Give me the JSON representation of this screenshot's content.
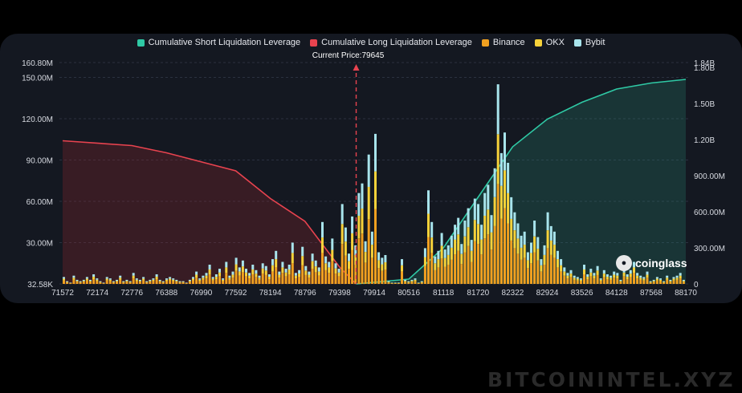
{
  "legend": [
    {
      "label": "Cumulative Short Liquidation Leverage",
      "color": "#2fc9a5"
    },
    {
      "label": "Cumulative Long Liquidation Leverage",
      "color": "#e8434f"
    },
    {
      "label": "Binance",
      "color": "#f0a020"
    },
    {
      "label": "OKX",
      "color": "#f7d23a"
    },
    {
      "label": "Bybit",
      "color": "#a8e4ec"
    }
  ],
  "brand": "coinglass",
  "brand_icon": "coinglass-logo-icon",
  "watermark": "BITCOININTEL.XYZ",
  "chart_data": {
    "type": "bar",
    "current_price_label": "Current Price:79645",
    "current_price": 79645,
    "x_ticks": [
      "71572",
      "72174",
      "72776",
      "76388",
      "76990",
      "77592",
      "78194",
      "78796",
      "79398",
      "79914",
      "80516",
      "81118",
      "81720",
      "82322",
      "82924",
      "83526",
      "84128",
      "87568",
      "88170"
    ],
    "y_left_ticks": [
      "32.58K",
      "30.00M",
      "60.00M",
      "90.00M",
      "120.00M",
      "150.00M",
      "160.80M"
    ],
    "y_right_ticks": [
      "0",
      "300.00M",
      "600.00M",
      "900.00M",
      "1.20B",
      "1.50B",
      "1.80B",
      "1.84B"
    ],
    "ylim_left": [
      0,
      160800000
    ],
    "ylim_right": [
      0,
      1840000000
    ],
    "bar_totals": [
      5,
      2,
      1,
      6,
      3,
      2,
      3,
      5,
      3,
      7,
      4,
      2,
      1,
      5,
      4,
      2,
      3,
      6,
      2,
      3,
      2,
      8,
      4,
      3,
      5,
      2,
      3,
      4,
      7,
      3,
      2,
      4,
      5,
      4,
      3,
      2,
      2,
      1,
      3,
      5,
      9,
      4,
      6,
      8,
      14,
      5,
      7,
      11,
      4,
      16,
      6,
      9,
      19,
      12,
      17,
      11,
      8,
      14,
      10,
      6,
      15,
      13,
      7,
      18,
      24,
      9,
      16,
      11,
      14,
      30,
      8,
      10,
      27,
      13,
      9,
      22,
      17,
      12,
      45,
      20,
      16,
      33,
      15,
      11,
      58,
      41,
      22,
      49,
      28,
      66,
      73,
      31,
      94,
      38,
      109,
      23,
      19,
      21,
      2,
      1,
      1,
      1,
      18,
      3,
      2,
      3,
      4,
      1,
      2,
      26,
      68,
      45,
      20,
      24,
      37,
      25,
      28,
      35,
      43,
      48,
      29,
      46,
      55,
      32,
      62,
      58,
      43,
      66,
      72,
      50,
      84,
      145,
      95,
      110,
      88,
      63,
      52,
      44,
      35,
      38,
      23,
      30,
      46,
      34,
      18,
      28,
      52,
      42,
      38,
      24,
      18,
      12,
      8,
      10,
      6,
      5,
      4,
      14,
      7,
      11,
      8,
      13,
      4,
      10,
      7,
      6,
      9,
      8,
      3,
      11,
      7,
      10,
      16,
      8,
      6,
      5,
      9,
      2,
      3,
      5,
      4,
      2,
      6,
      3,
      5,
      6,
      8,
      3
    ],
    "series_share": [
      {
        "name": "Binance",
        "share": 0.5
      },
      {
        "name": "OKX",
        "share": 0.25
      },
      {
        "name": "Bybit",
        "share": 0.25
      }
    ],
    "series": [
      {
        "name": "Cumulative Long Liquidation Leverage",
        "points": [
          [
            71572,
            1190000000
          ],
          [
            72776,
            1150000000
          ],
          [
            76388,
            1090000000
          ],
          [
            77592,
            940000000
          ],
          [
            78194,
            710000000
          ],
          [
            78796,
            520000000
          ],
          [
            79398,
            140000000
          ],
          [
            79645,
            0
          ]
        ]
      },
      {
        "name": "Cumulative Short Liquidation Leverage",
        "points": [
          [
            79645,
            0
          ],
          [
            80516,
            40000000
          ],
          [
            81118,
            300000000
          ],
          [
            81720,
            720000000
          ],
          [
            82322,
            1140000000
          ],
          [
            82924,
            1370000000
          ],
          [
            83526,
            1510000000
          ],
          [
            84128,
            1620000000
          ],
          [
            87568,
            1670000000
          ],
          [
            88170,
            1700000000
          ]
        ]
      }
    ]
  }
}
